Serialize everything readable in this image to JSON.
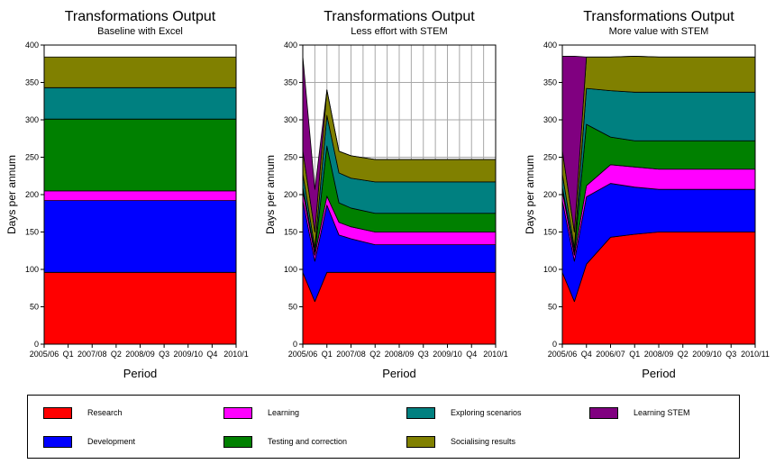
{
  "colors": {
    "Research": "#ff0000",
    "Development": "#0000ff",
    "Learning": "#ff00ff",
    "Testing and correction": "#008000",
    "Exploring scenarios": "#008080",
    "Socialising results": "#808000",
    "Learning STEM": "#800080"
  },
  "legend": {
    "items": [
      {
        "label": "Research",
        "color": "#ff0000"
      },
      {
        "label": "Learning",
        "color": "#ff00ff"
      },
      {
        "label": "Exploring scenarios",
        "color": "#008080"
      },
      {
        "label": "Learning STEM",
        "color": "#800080"
      },
      {
        "label": "Development",
        "color": "#0000ff"
      },
      {
        "label": "Testing and correction",
        "color": "#008000"
      },
      {
        "label": "Socialising results",
        "color": "#808000"
      }
    ]
  },
  "chart_data": [
    {
      "type": "area",
      "stacked": true,
      "title": "Transformations Output",
      "subtitle": "Baseline with Excel",
      "xlabel": "Period",
      "ylabel": "Days per annum",
      "ylim": [
        0,
        400
      ],
      "yticks": [
        0,
        50,
        100,
        150,
        200,
        250,
        300,
        350,
        400
      ],
      "xticks": [
        "2005/06",
        "Q1",
        "2007/08",
        "Q2",
        "2008/09",
        "Q3",
        "2009/10",
        "Q4",
        "2010/1"
      ],
      "grid": false,
      "x": [
        0,
        8
      ],
      "series": [
        {
          "name": "Research",
          "values": [
            96,
            96
          ]
        },
        {
          "name": "Development",
          "values": [
            96,
            96
          ]
        },
        {
          "name": "Learning",
          "values": [
            13,
            13
          ]
        },
        {
          "name": "Testing and correction",
          "values": [
            96,
            96
          ]
        },
        {
          "name": "Exploring scenarios",
          "values": [
            42,
            42
          ]
        },
        {
          "name": "Socialising results",
          "values": [
            41,
            41
          ]
        }
      ]
    },
    {
      "type": "area",
      "stacked": true,
      "title": "Transformations Output",
      "subtitle": "Less effort with STEM",
      "xlabel": "Period",
      "ylabel": "Days per annum",
      "ylim": [
        0,
        400
      ],
      "yticks": [
        0,
        50,
        100,
        150,
        200,
        250,
        300,
        350,
        400
      ],
      "xticks": [
        "2005/06",
        "Q1",
        "2007/08",
        "Q2",
        "2008/09",
        "Q3",
        "2009/10",
        "Q4",
        "2010/1"
      ],
      "grid": true,
      "x": [
        0,
        0.5,
        1,
        1.5,
        2,
        3,
        8
      ],
      "series": [
        {
          "name": "Research",
          "values": [
            96,
            57,
            96,
            96,
            96,
            96,
            96
          ]
        },
        {
          "name": "Development",
          "values": [
            96,
            54,
            90,
            50,
            45,
            37,
            37
          ]
        },
        {
          "name": "Learning",
          "values": [
            13,
            8,
            12,
            17,
            16,
            17,
            17
          ]
        },
        {
          "name": "Testing and correction",
          "values": [
            5,
            4,
            67,
            26,
            25,
            25,
            25
          ]
        },
        {
          "name": "Exploring scenarios",
          "values": [
            18,
            6,
            41,
            40,
            40,
            42,
            42
          ]
        },
        {
          "name": "Socialising results",
          "values": [
            31,
            21,
            34,
            29,
            30,
            30,
            30
          ]
        },
        {
          "name": "Learning STEM",
          "values": [
            126,
            57,
            0,
            0,
            0,
            0,
            0
          ]
        }
      ]
    },
    {
      "type": "area",
      "stacked": true,
      "title": "Transformations Output",
      "subtitle": "More value with STEM",
      "xlabel": "Period",
      "ylabel": "Days per annum",
      "ylim": [
        0,
        400
      ],
      "yticks": [
        0,
        50,
        100,
        150,
        200,
        250,
        300,
        350,
        400
      ],
      "xticks": [
        "2005/06",
        "Q4",
        "2006/07",
        "Q1",
        "2008/09",
        "Q2",
        "2009/10",
        "Q3",
        "2010/11"
      ],
      "grid": false,
      "x": [
        0,
        0.5,
        1,
        2,
        3,
        4,
        8
      ],
      "series": [
        {
          "name": "Research",
          "values": [
            96,
            57,
            107,
            143,
            147,
            150,
            150
          ]
        },
        {
          "name": "Development",
          "values": [
            96,
            54,
            90,
            72,
            63,
            57,
            57
          ]
        },
        {
          "name": "Learning",
          "values": [
            13,
            8,
            15,
            25,
            27,
            27,
            27
          ]
        },
        {
          "name": "Testing and correction",
          "values": [
            5,
            4,
            82,
            37,
            35,
            38,
            38
          ]
        },
        {
          "name": "Exploring scenarios",
          "values": [
            18,
            6,
            48,
            62,
            65,
            65,
            65
          ]
        },
        {
          "name": "Socialising results",
          "values": [
            31,
            21,
            42,
            45,
            48,
            47,
            47
          ]
        },
        {
          "name": "Learning STEM",
          "values": [
            126,
            235,
            0,
            0,
            0,
            0,
            0
          ]
        }
      ]
    }
  ]
}
